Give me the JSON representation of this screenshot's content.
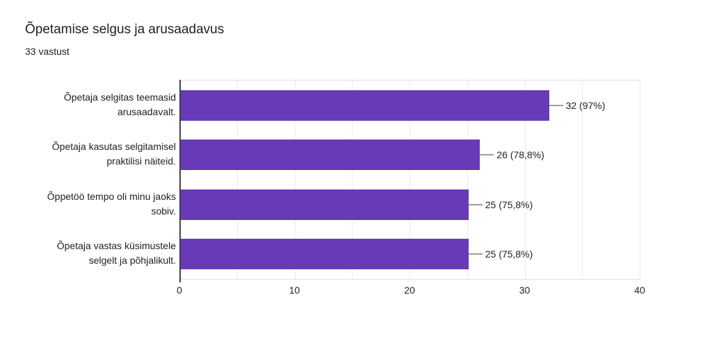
{
  "header": {
    "title": "Õpetamise selgus ja arusaadavus",
    "subtitle": "33 vastust"
  },
  "chart_data": {
    "type": "bar",
    "orientation": "horizontal",
    "title": "Õpetamise selgus ja arusaadavus",
    "subtitle": "33 vastust",
    "categories": [
      "Õpetaja selgitas teemasid arusaadavalt.",
      "Õpetaja kasutas selgitamisel praktilisi näiteid.",
      "Õppetöö tempo oli minu jaoks sobiv.",
      "Õpetaja vastas küsimustele selgelt ja põhjalikult."
    ],
    "category_lines": [
      [
        "Õpetaja selgitas teemasid",
        "arusaadavalt."
      ],
      [
        "Õpetaja kasutas selgitamisel",
        "praktilisi näiteid."
      ],
      [
        "Õppetöö tempo oli minu jaoks",
        "sobiv."
      ],
      [
        "Õpetaja vastas küsimustele",
        "selgelt ja põhjalikult."
      ]
    ],
    "values": [
      32,
      26,
      25,
      25
    ],
    "value_labels": [
      "32 (97%)",
      "26 (78,8%)",
      "25 (75,8%)",
      "25 (75,8%)"
    ],
    "xlim": [
      0,
      40
    ],
    "x_ticks": [
      "0",
      "10",
      "20",
      "30",
      "40"
    ],
    "x_tick_values": [
      0,
      10,
      20,
      30,
      40
    ],
    "gridline_step": 5,
    "grid": true,
    "legend": "none",
    "colors": {
      "bar": "#673ab7",
      "gridline": "#ebebeb",
      "baseline": "#e0e0e0",
      "axis_line": "#424242",
      "leader_line": "#9e9e9e",
      "text": "#212121"
    }
  }
}
